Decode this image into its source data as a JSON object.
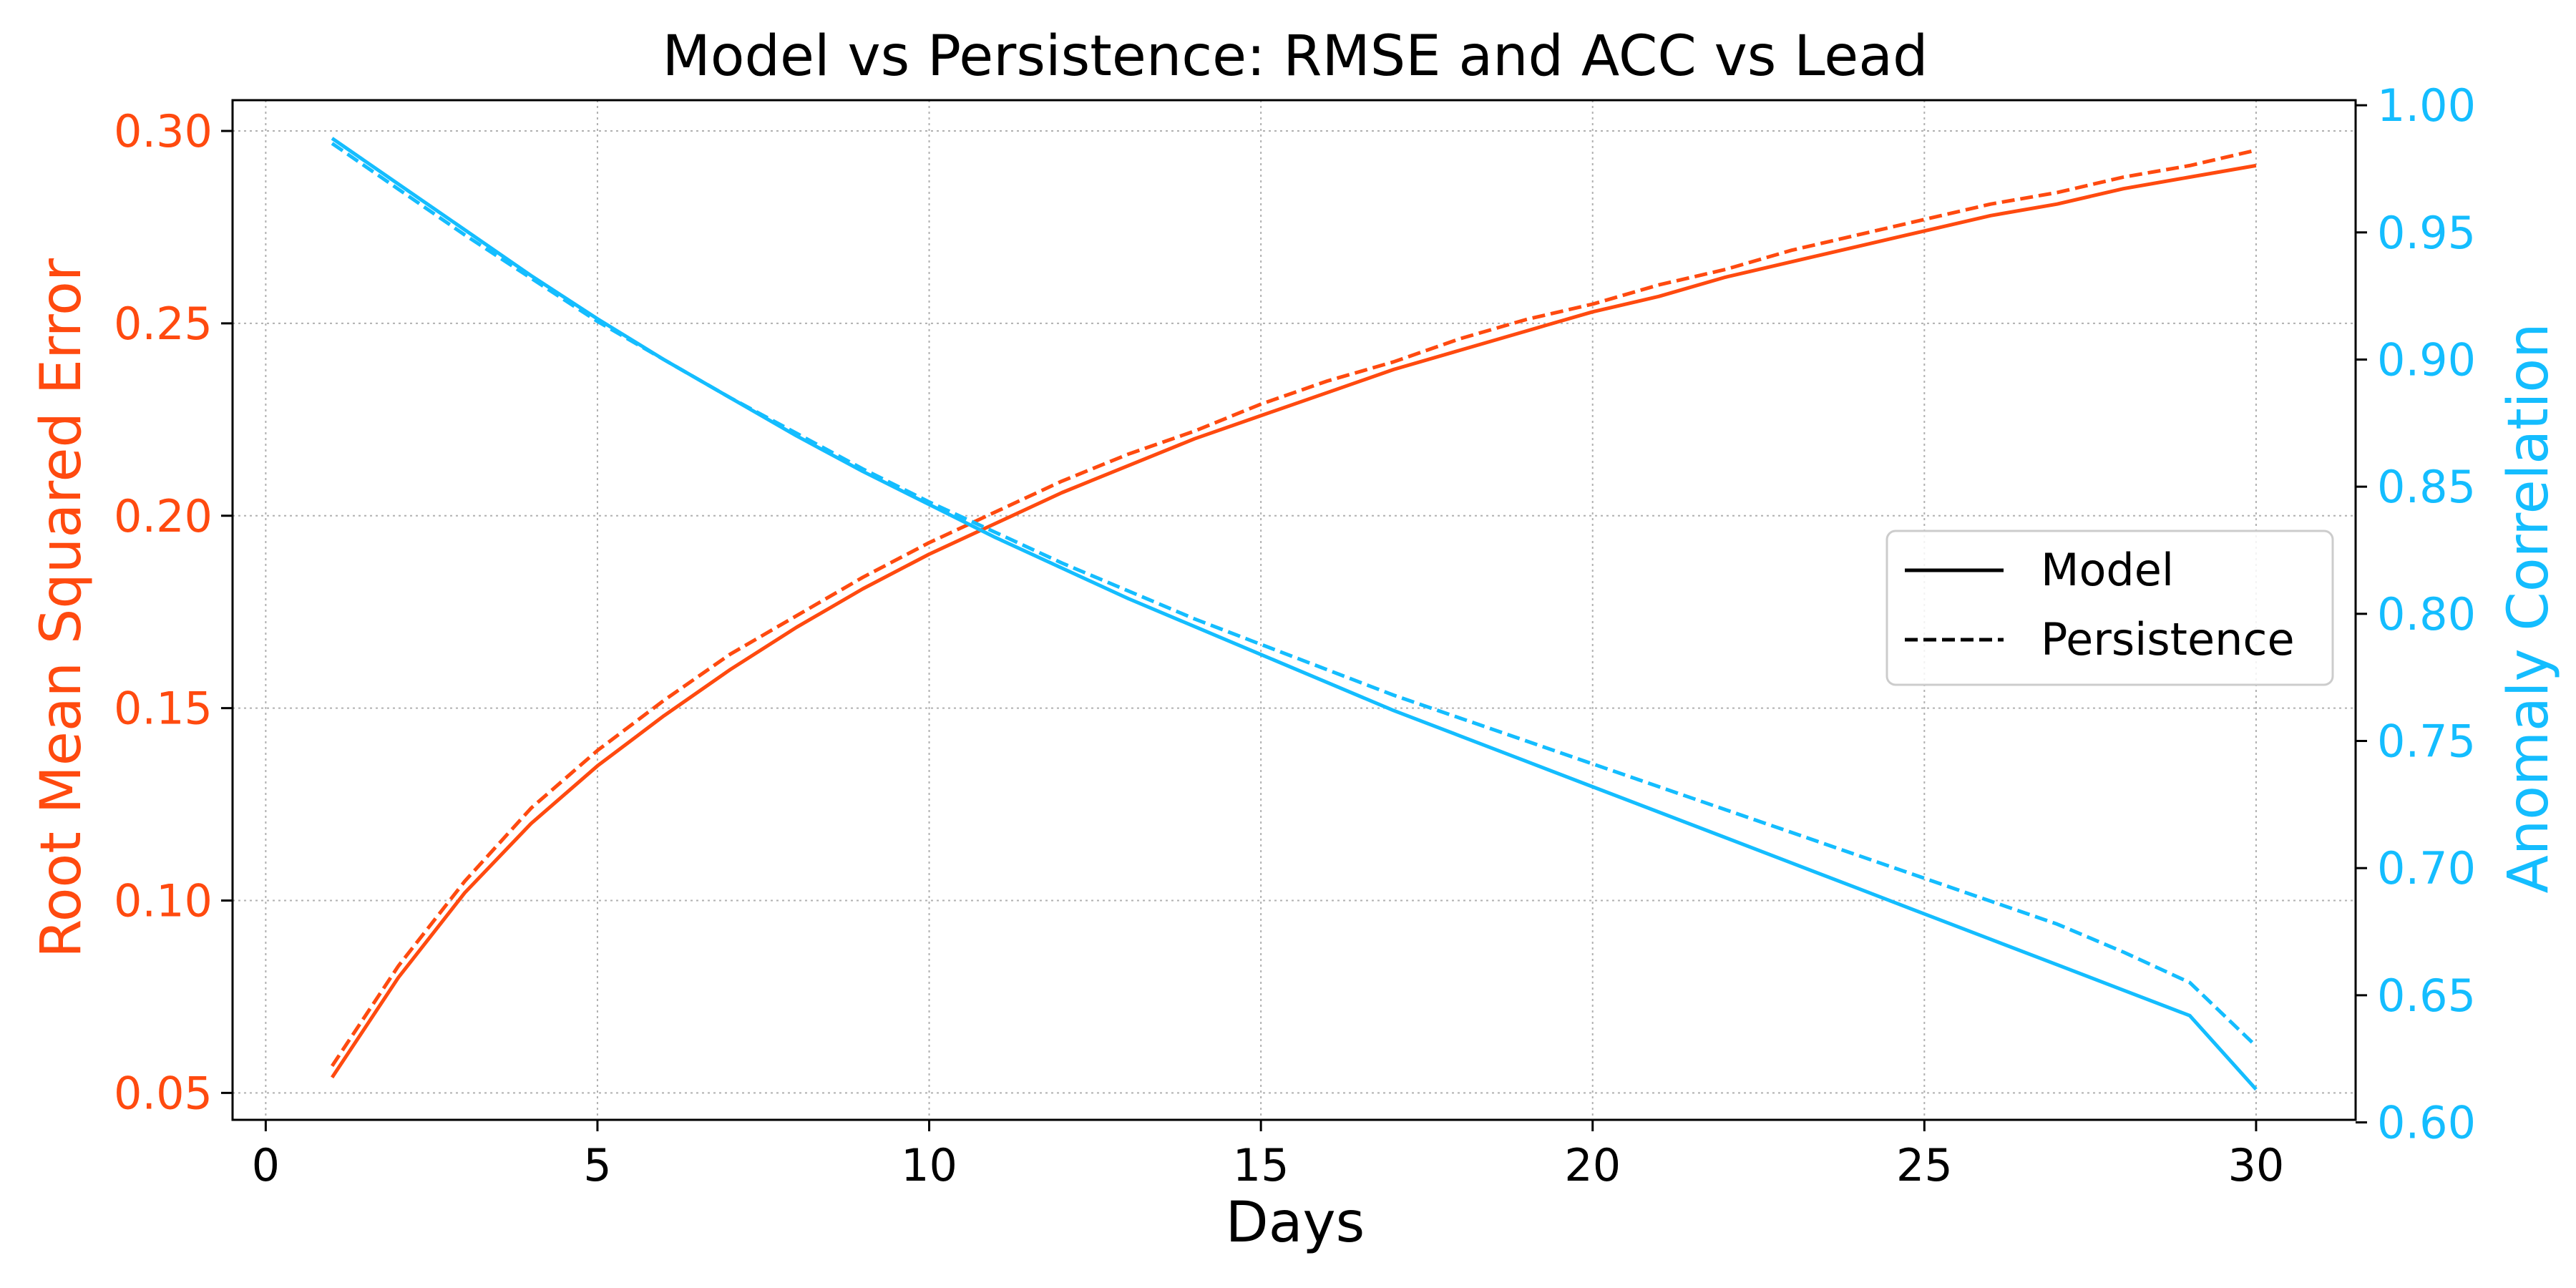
{
  "colors": {
    "rmse": "#ff4a0f",
    "acc": "#14bdff",
    "grid": "#b0b0b0",
    "legend_line": "#000000"
  },
  "chart_data": {
    "type": "line",
    "title": "Model vs Persistence: RMSE and ACC vs Lead",
    "xlabel": "Days",
    "ylabel_left": "Root Mean Squared Error",
    "ylabel_right": "Anomaly Correlation",
    "xlim": [
      -0.5,
      31.5
    ],
    "ylim_left": [
      0.043,
      0.308
    ],
    "ylim_right": [
      0.601,
      1.002
    ],
    "x_ticks": [
      0,
      5,
      10,
      15,
      20,
      25,
      30
    ],
    "y_left_ticks": [
      "0.05",
      "0.10",
      "0.15",
      "0.20",
      "0.25",
      "0.30"
    ],
    "y_right_ticks": [
      "0.60",
      "0.65",
      "0.70",
      "0.75",
      "0.80",
      "0.85",
      "0.90",
      "0.95",
      "1.00"
    ],
    "grid": true,
    "legend": {
      "position": "center-right",
      "entries": [
        "Model",
        "Persistence"
      ]
    },
    "x": [
      1,
      2,
      3,
      4,
      5,
      6,
      7,
      8,
      9,
      10,
      11,
      12,
      13,
      14,
      15,
      16,
      17,
      18,
      19,
      20,
      21,
      22,
      23,
      24,
      25,
      26,
      27,
      28,
      29,
      30
    ],
    "series": [
      {
        "name": "Model",
        "metric": "RMSE",
        "axis": "left",
        "style": "solid",
        "values": [
          0.054,
          0.08,
          0.102,
          0.12,
          0.135,
          0.148,
          0.16,
          0.171,
          0.181,
          0.19,
          0.198,
          0.206,
          0.213,
          0.22,
          0.226,
          0.232,
          0.238,
          0.243,
          0.248,
          0.253,
          0.257,
          0.262,
          0.266,
          0.27,
          0.274,
          0.278,
          0.281,
          0.285,
          0.288,
          0.291
        ]
      },
      {
        "name": "Persistence",
        "metric": "RMSE",
        "axis": "left",
        "style": "dashed",
        "values": [
          0.057,
          0.083,
          0.105,
          0.124,
          0.139,
          0.152,
          0.164,
          0.174,
          0.184,
          0.193,
          0.201,
          0.209,
          0.216,
          0.222,
          0.229,
          0.235,
          0.24,
          0.246,
          0.251,
          0.255,
          0.26,
          0.264,
          0.269,
          0.273,
          0.277,
          0.281,
          0.284,
          0.288,
          0.291,
          0.295
        ]
      },
      {
        "name": "Model",
        "metric": "ACC",
        "axis": "right",
        "style": "solid",
        "values": [
          0.987,
          0.969,
          0.951,
          0.933,
          0.916,
          0.9,
          0.885,
          0.87,
          0.856,
          0.843,
          0.83,
          0.818,
          0.806,
          0.795,
          0.784,
          0.773,
          0.762,
          0.752,
          0.742,
          0.732,
          0.722,
          0.712,
          0.702,
          0.692,
          0.682,
          0.672,
          0.662,
          0.652,
          0.642,
          0.613
        ]
      },
      {
        "name": "Persistence",
        "metric": "ACC",
        "axis": "right",
        "style": "dashed",
        "values": [
          0.985,
          0.967,
          0.949,
          0.932,
          0.915,
          0.9,
          0.885,
          0.871,
          0.857,
          0.844,
          0.832,
          0.82,
          0.809,
          0.798,
          0.788,
          0.778,
          0.768,
          0.759,
          0.75,
          0.741,
          0.732,
          0.723,
          0.714,
          0.705,
          0.696,
          0.687,
          0.678,
          0.667,
          0.655,
          0.63
        ]
      }
    ]
  }
}
